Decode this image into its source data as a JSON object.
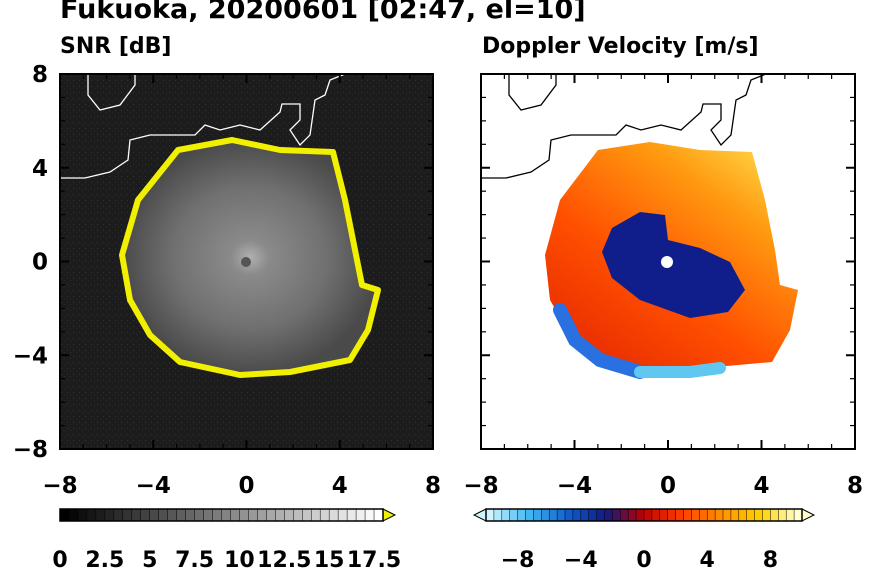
{
  "title": "Fukuoka, 20200601 [02:47, el=10]",
  "chart_data": [
    {
      "type": "heatmap",
      "title": "SNR [dB]",
      "xlim": [
        -8,
        8
      ],
      "ylim": [
        -8,
        8
      ],
      "xticks": [
        "−8",
        "−4",
        "0",
        "4",
        "8"
      ],
      "yticks": [
        "8",
        "4",
        "0",
        "−4",
        "−8"
      ],
      "colorbar": {
        "range": [
          0,
          18
        ],
        "extend": "max",
        "tick_labels": [
          "0",
          "2.5",
          "5",
          "7.5",
          "10",
          "12.5",
          "15",
          "17.5"
        ],
        "colors_low_to_high": [
          "#000000",
          "#ffffff"
        ],
        "extension_color": "#f0f000"
      },
      "features": {
        "echo_ring_radius_km": 5.0,
        "ring_color": "#f0f000",
        "background": "#1a1a1a"
      }
    },
    {
      "type": "heatmap",
      "title": "Doppler Velocity [m/s]",
      "xlim": [
        -8,
        8
      ],
      "ylim": [
        -8,
        8
      ],
      "xticks": [
        "−8",
        "−4",
        "0",
        "4",
        "8"
      ],
      "yticks": [],
      "colorbar": {
        "range": [
          -10,
          10
        ],
        "extend": "both",
        "tick_labels": [
          "−8",
          "−4",
          "0",
          "4",
          "8"
        ],
        "colors_low_to_high": [
          "#d0f4ff",
          "#40b8f0",
          "#1060d0",
          "#101a80",
          "#c00000",
          "#ff4000",
          "#ff9000",
          "#ffd000",
          "#ffffd0"
        ]
      },
      "features": {
        "echo_radius_km": 5.0,
        "background": "#ffffff"
      }
    }
  ]
}
